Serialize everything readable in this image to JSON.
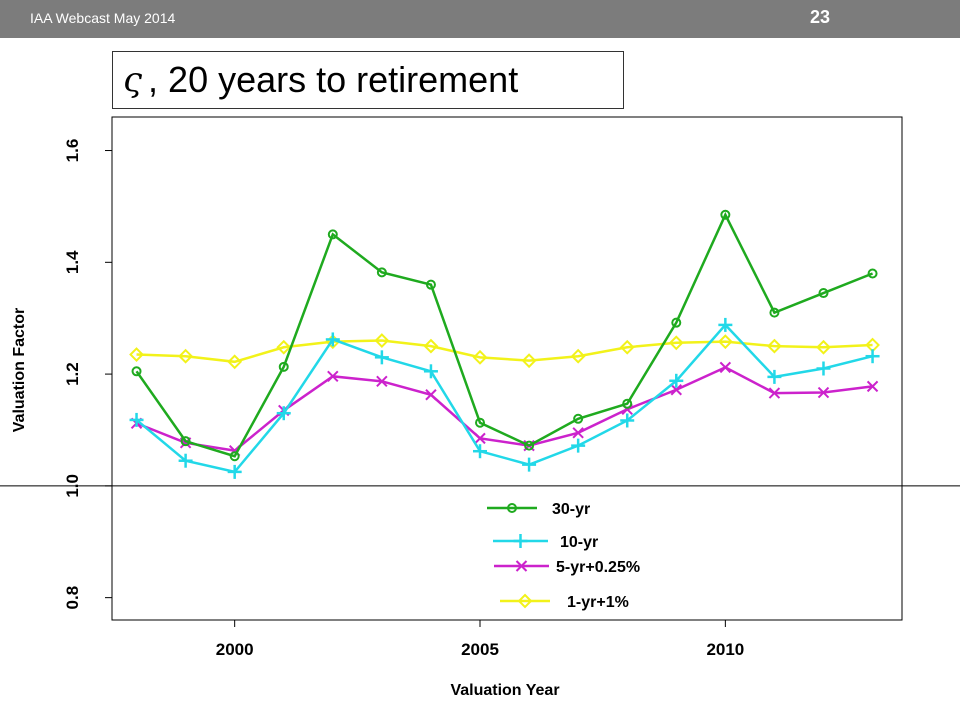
{
  "header": {
    "left_text": "IAA Webcast May 2014",
    "slide_number": "23"
  },
  "title": {
    "symbol": "ς",
    "text": ", 20 years to retirement"
  },
  "chart_data": {
    "type": "line",
    "xlabel": "Valuation Year",
    "ylabel": "Valuation Factor",
    "xlim": [
      1997.5,
      2013.6
    ],
    "ylim": [
      0.76,
      1.66
    ],
    "xticks": [
      2000,
      2005,
      2010
    ],
    "yticks": [
      0.8,
      1.0,
      1.2,
      1.4,
      1.6
    ],
    "ytick_labels": [
      "0.8",
      "1.0",
      "1.2",
      "1.4",
      "1.6"
    ],
    "reference_line": 1.0,
    "x": [
      1998,
      1999,
      2000,
      2001,
      2002,
      2003,
      2004,
      2005,
      2006,
      2007,
      2008,
      2009,
      2010,
      2011,
      2012,
      2013
    ],
    "series": [
      {
        "name": "30-yr",
        "color": "#1faa1f",
        "marker": "circle",
        "values": [
          1.205,
          1.08,
          1.053,
          1.213,
          1.45,
          1.382,
          1.36,
          1.113,
          1.072,
          1.12,
          1.147,
          1.292,
          1.485,
          1.31,
          1.345,
          1.38
        ]
      },
      {
        "name": "10-yr",
        "color": "#22d8e8",
        "marker": "plus",
        "values": [
          1.118,
          1.045,
          1.025,
          1.13,
          1.262,
          1.23,
          1.205,
          1.062,
          1.038,
          1.072,
          1.117,
          1.188,
          1.288,
          1.195,
          1.21,
          1.232
        ]
      },
      {
        "name": "5-yr+0.25%",
        "color": "#cc22cc",
        "marker": "x",
        "values": [
          1.112,
          1.077,
          1.063,
          1.135,
          1.196,
          1.187,
          1.163,
          1.085,
          1.072,
          1.095,
          1.137,
          1.172,
          1.212,
          1.166,
          1.167,
          1.178
        ]
      },
      {
        "name": "1-yr+1%",
        "color": "#f2f21a",
        "marker": "diamond",
        "values": [
          1.235,
          1.232,
          1.222,
          1.248,
          1.258,
          1.26,
          1.25,
          1.23,
          1.224,
          1.232,
          1.248,
          1.256,
          1.258,
          1.25,
          1.248,
          1.252
        ]
      }
    ],
    "legend_position": "bottom-center"
  }
}
